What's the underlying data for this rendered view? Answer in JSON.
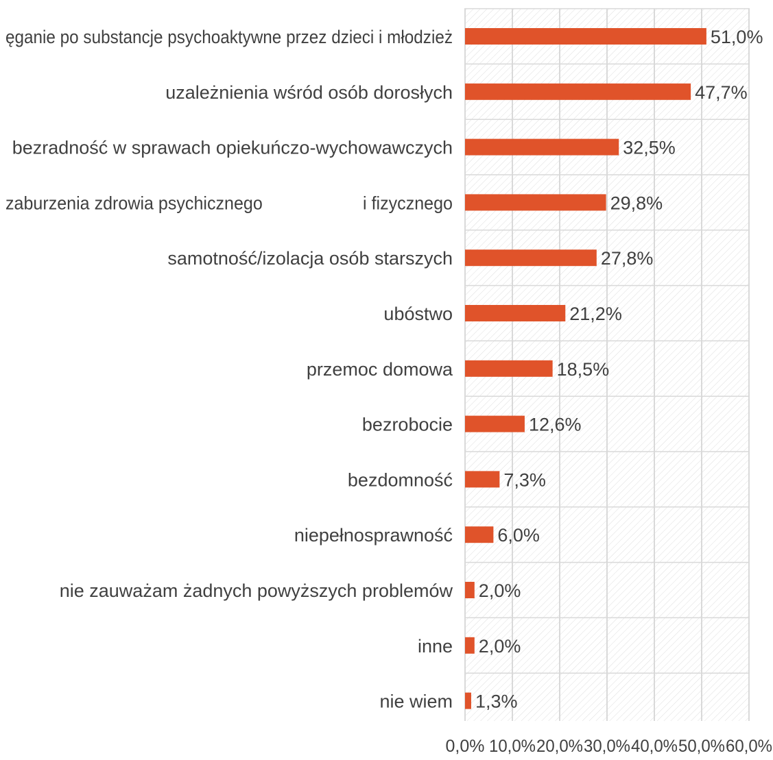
{
  "colors": {
    "bar": "#E0532A",
    "grid": "#D9D9D9",
    "hatch": "#D9D9D9",
    "text": "#404040"
  },
  "chart_data": {
    "type": "bar",
    "orientation": "horizontal",
    "title": "",
    "xlabel": "",
    "ylabel": "",
    "xlim": [
      0,
      60
    ],
    "x_ticks": [
      "0,0%",
      "10,0%",
      "20,0%",
      "30,0%",
      "40,0%",
      "50,0%",
      "60,0%"
    ],
    "grid": true,
    "legend": "none",
    "categories": [
      "ęganie po substancje psychoaktywne przez dzieci i młodzież",
      "uzależnienia wśród osób dorosłych",
      "bezradność w sprawach opiekuńczo-wychowawczych",
      "zaburzenia zdrowia psychicznego                     i fizycznego",
      "samotność/izolacja osób starszych",
      "ubóstwo",
      "przemoc domowa",
      "bezrobocie",
      "bezdomność",
      "niepełnosprawność",
      "nie zauważam żadnych powyższych problemów",
      "inne",
      "nie wiem"
    ],
    "values": [
      51.0,
      47.7,
      32.5,
      29.8,
      27.8,
      21.2,
      18.5,
      12.6,
      7.3,
      6.0,
      2.0,
      2.0,
      1.3
    ],
    "data_labels": [
      "51,0%",
      "47,7%",
      "32,5%",
      "29,8%",
      "27,8%",
      "21,2%",
      "18,5%",
      "12,6%",
      "7,3%",
      "6,0%",
      "2,0%",
      "2,0%",
      "1,3%"
    ]
  }
}
